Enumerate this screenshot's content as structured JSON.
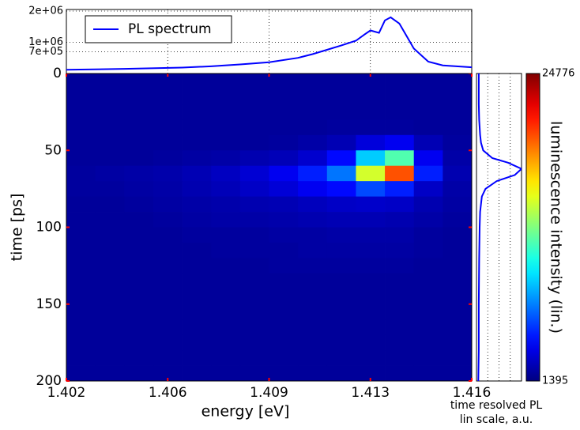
{
  "chart_data": [
    {
      "type": "heatmap",
      "xlabel": "energy [eV]",
      "ylabel": "time [ps]",
      "x_edges": [
        1.402,
        1.403,
        1.404,
        1.405,
        1.406,
        1.407,
        1.408,
        1.409,
        1.41,
        1.411,
        1.412,
        1.413,
        1.414,
        1.415,
        1.416
      ],
      "y_edges": [
        0,
        10,
        20,
        30,
        40,
        50,
        60,
        70,
        80,
        90,
        100,
        110,
        120,
        130,
        140,
        150,
        160,
        170,
        180,
        190,
        200
      ],
      "z": [
        [
          2000,
          2000,
          2000,
          2000,
          2000,
          2000,
          2000,
          2000,
          2000,
          2000,
          2000,
          2000,
          2000,
          2000
        ],
        [
          2000,
          2000,
          2000,
          2000,
          2000,
          2000,
          2000,
          2000,
          2000,
          2000,
          2000,
          2000,
          2000,
          2000
        ],
        [
          2000,
          2000,
          2000,
          2000,
          2000,
          2000,
          2000,
          2000,
          2000,
          2000,
          2000,
          2000,
          2000,
          2000
        ],
        [
          2000,
          2000,
          2000,
          2000,
          2000,
          2000,
          2000,
          2000,
          2000,
          2100,
          2100,
          2100,
          2000,
          2000
        ],
        [
          2000,
          2000,
          2000,
          2000,
          2000,
          2000,
          2000,
          2100,
          2300,
          2600,
          3500,
          4000,
          2600,
          2100
        ],
        [
          2000,
          2000,
          2000,
          2100,
          2200,
          2300,
          2500,
          2700,
          3200,
          4500,
          9000,
          12000,
          4000,
          2300
        ],
        [
          2100,
          2200,
          2300,
          2400,
          2600,
          2900,
          3300,
          4000,
          5000,
          7000,
          15000,
          20000,
          5000,
          2500
        ],
        [
          2100,
          2100,
          2200,
          2300,
          2500,
          2700,
          3000,
          3400,
          4000,
          4500,
          6000,
          5000,
          3000,
          2300
        ],
        [
          2000,
          2000,
          2100,
          2200,
          2300,
          2400,
          2500,
          2600,
          2800,
          3000,
          3100,
          3000,
          2500,
          2200
        ],
        [
          2000,
          2000,
          2000,
          2100,
          2200,
          2300,
          2300,
          2400,
          2500,
          2600,
          2600,
          2500,
          2300,
          2100
        ],
        [
          2000,
          2000,
          2000,
          2000,
          2100,
          2100,
          2100,
          2200,
          2200,
          2300,
          2300,
          2300,
          2100,
          2000
        ],
        [
          2000,
          2000,
          2000,
          2000,
          2000,
          2100,
          2100,
          2100,
          2200,
          2200,
          2200,
          2200,
          2100,
          2000
        ],
        [
          2000,
          2000,
          2000,
          2000,
          2000,
          2000,
          2000,
          2100,
          2100,
          2100,
          2100,
          2100,
          2000,
          2000
        ],
        [
          2000,
          2000,
          2000,
          2000,
          2000,
          2000,
          2000,
          2000,
          2000,
          2000,
          2000,
          2000,
          2000,
          2000
        ],
        [
          2000,
          2000,
          2000,
          2000,
          2000,
          2000,
          2000,
          2000,
          2000,
          2000,
          2000,
          2000,
          2000,
          2000
        ],
        [
          2000,
          2000,
          2000,
          2000,
          2000,
          2000,
          2000,
          2000,
          2000,
          2000,
          2000,
          2000,
          2000,
          2000
        ],
        [
          2000,
          2000,
          2000,
          2000,
          2000,
          2000,
          2000,
          2000,
          2000,
          2000,
          2000,
          2000,
          2000,
          2000
        ],
        [
          2000,
          2000,
          2000,
          2000,
          2000,
          2000,
          2000,
          2000,
          2000,
          2000,
          2000,
          2000,
          2000,
          2000
        ],
        [
          2000,
          2000,
          2000,
          2000,
          2000,
          2000,
          2000,
          2000,
          2000,
          2000,
          2000,
          2000,
          2000,
          2000
        ],
        [
          2000,
          2000,
          2000,
          2000,
          2000,
          2000,
          2000,
          2000,
          2000,
          2000,
          2000,
          2000,
          2000,
          2000
        ]
      ],
      "xlim": [
        1.402,
        1.416
      ],
      "ylim": [
        200,
        0
      ],
      "xticks": [
        1.402,
        {
          "value": 1.4055,
          "label": "1.406"
        },
        1.409,
        {
          "value": 1.4125,
          "label": "1.413"
        },
        1.416
      ],
      "yticks": [
        0,
        50,
        100,
        150,
        200
      ],
      "tick_color": "#ff0000",
      "cmap": "jet",
      "clim": [
        1395,
        24776
      ],
      "cticks": [
        1395,
        24776
      ],
      "colorbar_label": "luminescence intensity (lin.)"
    },
    {
      "type": "line",
      "x": [
        1.402,
        1.404,
        1.406,
        1.407,
        1.408,
        1.409,
        1.41,
        1.4105,
        1.411,
        1.4115,
        1.412,
        1.4123,
        1.4125,
        1.4128,
        1.413,
        1.4132,
        1.4135,
        1.414,
        1.4145,
        1.415,
        1.416
      ],
      "series": [
        {
          "name": "PL spectrum",
          "color": "#0000ff",
          "values": [
            120000,
            150000,
            190000,
            230000,
            290000,
            360000,
            500000,
            620000,
            760000,
            900000,
            1050000,
            1250000,
            1380000,
            1300000,
            1700000,
            1800000,
            1600000,
            800000,
            380000,
            260000,
            200000
          ]
        }
      ],
      "xlim": [
        1.402,
        1.416
      ],
      "ylim": [
        0,
        2050000
      ],
      "yticks": [
        {
          "value": 2000000,
          "label": "2e+06"
        },
        {
          "value": 1000000,
          "label": "1e+06"
        },
        {
          "value": 700000,
          "label": "7e+05"
        }
      ],
      "grid": true,
      "legend": "upper left"
    },
    {
      "type": "line",
      "orientation": "vertical",
      "y": [
        0,
        10,
        20,
        30,
        40,
        45,
        50,
        55,
        58,
        62,
        66,
        70,
        75,
        80,
        90,
        100,
        120,
        150,
        180,
        200
      ],
      "values": [
        0.05,
        0.05,
        0.05,
        0.06,
        0.08,
        0.1,
        0.15,
        0.35,
        0.7,
        1.0,
        0.85,
        0.45,
        0.2,
        0.12,
        0.08,
        0.07,
        0.06,
        0.05,
        0.05,
        0.04
      ],
      "color": "#0000ff",
      "xlim": [
        0,
        1.0
      ],
      "ylim": [
        200,
        0
      ],
      "xticks": [
        0.25,
        0.5,
        0.75
      ],
      "grid": true,
      "xlabel": [
        "time resolved PL",
        "lin scale, a.u."
      ]
    }
  ]
}
